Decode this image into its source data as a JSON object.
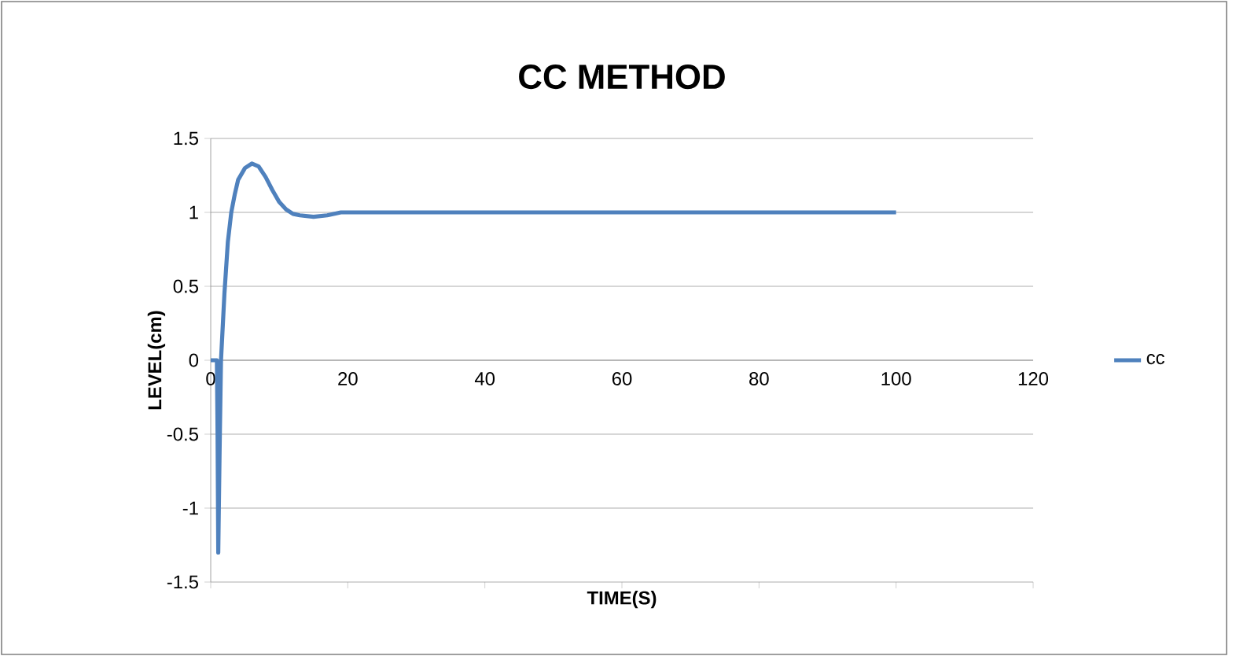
{
  "chart_data": {
    "type": "line",
    "title": "CC METHOD",
    "xlabel": "TIME(S)",
    "ylabel": "LEVEL(cm)",
    "x": [
      0,
      0.5,
      0.9,
      1,
      1.1,
      1.3,
      1.5,
      2,
      2.5,
      3,
      3.5,
      4,
      5,
      6,
      7,
      8,
      9,
      10,
      11,
      12,
      13,
      15,
      17,
      19,
      21,
      25,
      30,
      40,
      60,
      80,
      100
    ],
    "series": [
      {
        "name": "cc",
        "color": "#4f81bd",
        "values": [
          0,
          0,
          0,
          -0.5,
          -1.3,
          -0.6,
          0,
          0.45,
          0.8,
          1.0,
          1.12,
          1.22,
          1.3,
          1.33,
          1.31,
          1.24,
          1.15,
          1.07,
          1.02,
          0.99,
          0.98,
          0.97,
          0.98,
          1.0,
          1.0,
          1.0,
          1.0,
          1.0,
          1.0,
          1.0,
          1.0
        ]
      }
    ],
    "xlim": [
      0,
      120
    ],
    "xticks": [
      0,
      20,
      40,
      60,
      80,
      100,
      120
    ],
    "ylim": [
      -1.5,
      1.5
    ],
    "yticks": [
      -1.5,
      -1,
      -0.5,
      0,
      0.5,
      1,
      1.5
    ],
    "grid": "y",
    "legend": "right",
    "marker": "none",
    "line_style": "solid"
  }
}
